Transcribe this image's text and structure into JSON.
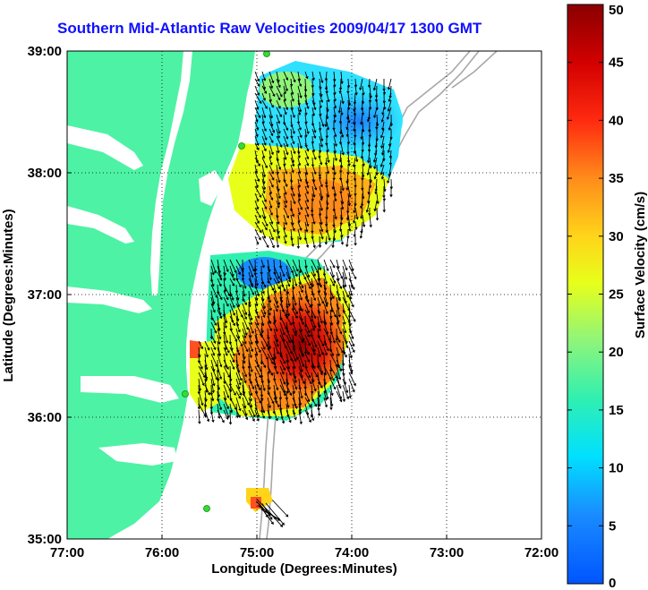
{
  "title": "Southern Mid-Atlantic Raw Velocities 2009/04/17 1300 GMT",
  "map": {
    "x_ticks": [
      "77:00",
      "76:00",
      "75:00",
      "74:00",
      "73:00",
      "72:00"
    ],
    "y_ticks": [
      "39:00",
      "38:00",
      "37:00",
      "36:00",
      "35:00"
    ],
    "xlabel": "Longitude (Degrees:Minutes)",
    "ylabel": "Latitude (Degrees:Minutes)",
    "lon_range": [
      -77,
      -72
    ],
    "lat_range": [
      35,
      39
    ],
    "grid": "dotted",
    "land_color": "#4ef2a5",
    "sea_color": "#ffffff",
    "vector_color": "#000000",
    "station_color": "#33dd33"
  },
  "colorbar": {
    "label": "Surface Velocity (cm/s)",
    "ticks": [
      "0",
      "5",
      "10",
      "15",
      "20",
      "25",
      "30",
      "35",
      "40",
      "45",
      "50"
    ],
    "range": [
      0,
      50
    ],
    "colormap": "jet"
  }
}
